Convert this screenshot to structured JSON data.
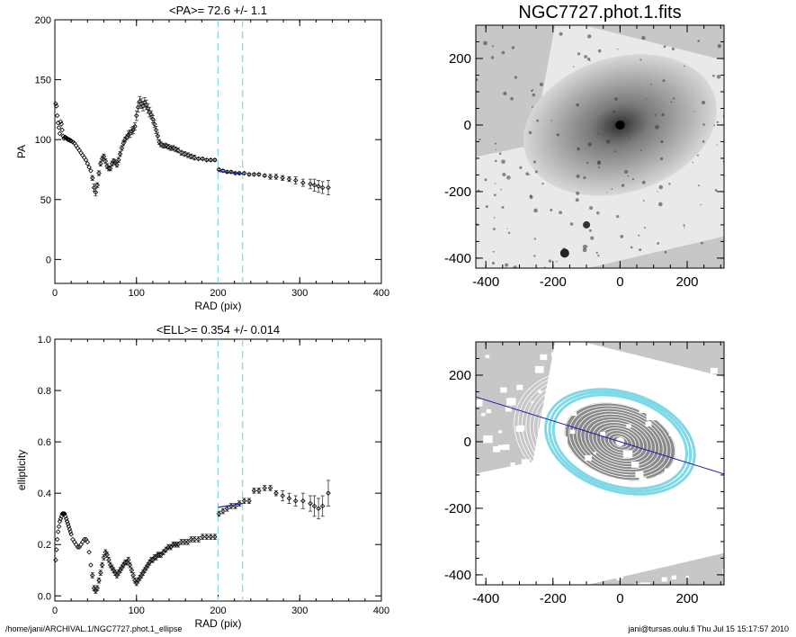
{
  "footer": {
    "path": "/home/jani/ARCHIVAL.1/NGC7727.phot.1_ellipse",
    "user_time": "jani@tursas.oulu.fi  Thu Jul 15 15:17:57 2010"
  },
  "chart_data": [
    {
      "id": "pa",
      "type": "scatter",
      "title": "<PA>=  72.6 +/-   1.1",
      "xlabel": "RAD (pix)",
      "ylabel": "PA",
      "xlim": [
        0,
        400
      ],
      "ylim": [
        -20,
        200
      ],
      "xticks": [
        0,
        100,
        200,
        300,
        400
      ],
      "yticks": [
        0,
        50,
        100,
        150,
        200
      ],
      "marker": "diamond",
      "color": "#000000",
      "vlines": [
        200,
        230
      ],
      "vline_color": "#7fd8e6",
      "fit": {
        "x": [
          200,
          230
        ],
        "y": [
          73.5,
          71.5
        ],
        "color": "#1a1ab0"
      },
      "x": [
        1,
        2,
        3,
        4,
        5,
        6,
        7,
        8,
        9,
        10,
        11,
        12,
        13,
        14,
        15,
        16,
        17,
        18,
        19,
        20,
        22,
        24,
        26,
        28,
        30,
        32,
        34,
        36,
        38,
        40,
        42,
        44,
        46,
        48,
        50,
        52,
        54,
        56,
        58,
        60,
        62,
        64,
        66,
        68,
        70,
        72,
        74,
        76,
        78,
        80,
        82,
        84,
        86,
        88,
        90,
        92,
        94,
        96,
        98,
        100,
        102,
        104,
        106,
        108,
        110,
        112,
        114,
        116,
        118,
        120,
        122,
        124,
        126,
        128,
        130,
        133,
        136,
        139,
        142,
        145,
        148,
        151,
        155,
        159,
        163,
        167,
        171,
        176,
        181,
        186,
        191,
        196,
        201,
        206,
        211,
        216,
        221,
        226,
        232,
        238,
        244,
        250,
        257,
        264,
        271,
        279,
        287,
        295,
        304,
        313,
        318,
        323,
        328,
        335
      ],
      "y": [
        130,
        128,
        120,
        114,
        110,
        105,
        115,
        113,
        108,
        103,
        101,
        102,
        102,
        101,
        101,
        100,
        100,
        100,
        99,
        99,
        98,
        97,
        95,
        93,
        91,
        89,
        87,
        85,
        83,
        80,
        77,
        74,
        68,
        60,
        56,
        62,
        72,
        80,
        84,
        86,
        82,
        78,
        76,
        76,
        80,
        82,
        81,
        79,
        83,
        88,
        93,
        97,
        100,
        102,
        104,
        105,
        107,
        108,
        111,
        120,
        127,
        132,
        130,
        128,
        131,
        129,
        126,
        123,
        121,
        117,
        113,
        108,
        103,
        98,
        96,
        95,
        95,
        94,
        93,
        93,
        92,
        91,
        89,
        88,
        87,
        86,
        85,
        84,
        84,
        83,
        83,
        83,
        75,
        74,
        73,
        73,
        72,
        72,
        72,
        71,
        71,
        71,
        70,
        69,
        69,
        68,
        67,
        66,
        64,
        63,
        62,
        61,
        60,
        60
      ],
      "err": [
        0,
        0,
        0,
        0,
        0,
        0,
        0,
        0,
        0,
        0,
        0,
        0,
        0,
        0,
        0,
        0,
        0,
        0,
        0,
        0,
        0,
        0,
        0,
        0,
        0,
        0,
        0,
        0,
        0,
        0,
        0,
        0,
        2,
        3,
        3,
        2,
        2,
        2,
        2,
        2,
        2,
        2,
        2,
        2,
        2,
        2,
        2,
        2,
        2,
        2,
        2,
        2,
        2,
        2,
        3,
        3,
        3,
        3,
        3,
        4,
        4,
        4,
        4,
        4,
        4,
        4,
        4,
        4,
        3,
        3,
        3,
        3,
        3,
        2,
        2,
        2,
        2,
        2,
        2,
        2,
        2,
        2,
        2,
        2,
        2,
        2,
        2,
        1,
        1,
        1,
        1,
        1,
        1,
        1,
        1,
        1,
        1,
        1,
        1,
        1,
        1,
        1,
        1,
        2,
        2,
        2,
        2,
        3,
        3,
        4,
        5,
        5,
        5,
        6
      ]
    },
    {
      "id": "ell",
      "type": "scatter",
      "title": "<ELL>= 0.354 +/-  0.014",
      "xlabel": "RAD (pix)",
      "ylabel": "ellipticity",
      "xlim": [
        0,
        400
      ],
      "ylim": [
        -0.02,
        1.0
      ],
      "xticks": [
        0,
        100,
        200,
        300,
        400
      ],
      "yticks": [
        0.0,
        0.2,
        0.4,
        0.6,
        0.8,
        1.0
      ],
      "marker": "diamond",
      "color": "#000000",
      "vlines": [
        200,
        230
      ],
      "vline_color": "#7fd8e6",
      "fit": {
        "x": [
          200,
          230
        ],
        "y": [
          0.345,
          0.36
        ],
        "color": "#1a1ab0"
      },
      "x": [
        1,
        2,
        3,
        4,
        5,
        6,
        7,
        8,
        9,
        10,
        11,
        12,
        13,
        14,
        15,
        16,
        17,
        18,
        19,
        20,
        22,
        24,
        26,
        28,
        30,
        32,
        34,
        36,
        38,
        40,
        42,
        44,
        46,
        48,
        50,
        52,
        54,
        56,
        58,
        60,
        62,
        64,
        66,
        68,
        70,
        72,
        74,
        76,
        78,
        80,
        82,
        84,
        86,
        88,
        90,
        92,
        94,
        96,
        98,
        100,
        102,
        104,
        106,
        108,
        110,
        112,
        114,
        116,
        118,
        120,
        122,
        124,
        126,
        128,
        130,
        133,
        136,
        139,
        142,
        145,
        148,
        151,
        155,
        159,
        163,
        167,
        171,
        176,
        181,
        186,
        191,
        196,
        201,
        206,
        211,
        216,
        221,
        226,
        232,
        238,
        244,
        250,
        257,
        264,
        271,
        279,
        287,
        295,
        304,
        313,
        318,
        323,
        328,
        335
      ],
      "y": [
        0.14,
        0.18,
        0.22,
        0.25,
        0.27,
        0.29,
        0.3,
        0.31,
        0.32,
        0.32,
        0.32,
        0.32,
        0.31,
        0.3,
        0.29,
        0.28,
        0.27,
        0.26,
        0.25,
        0.24,
        0.22,
        0.21,
        0.2,
        0.19,
        0.19,
        0.2,
        0.21,
        0.22,
        0.22,
        0.21,
        0.17,
        0.12,
        0.08,
        0.03,
        0.02,
        0.03,
        0.06,
        0.09,
        0.12,
        0.15,
        0.17,
        0.16,
        0.14,
        0.12,
        0.11,
        0.1,
        0.09,
        0.08,
        0.09,
        0.1,
        0.11,
        0.12,
        0.13,
        0.13,
        0.14,
        0.12,
        0.1,
        0.08,
        0.06,
        0.05,
        0.06,
        0.07,
        0.08,
        0.09,
        0.1,
        0.11,
        0.12,
        0.13,
        0.14,
        0.14,
        0.15,
        0.15,
        0.16,
        0.16,
        0.16,
        0.17,
        0.18,
        0.19,
        0.19,
        0.2,
        0.2,
        0.2,
        0.21,
        0.21,
        0.21,
        0.22,
        0.22,
        0.22,
        0.23,
        0.23,
        0.23,
        0.23,
        0.32,
        0.33,
        0.34,
        0.35,
        0.35,
        0.36,
        0.37,
        0.37,
        0.41,
        0.41,
        0.42,
        0.42,
        0.4,
        0.39,
        0.38,
        0.37,
        0.37,
        0.36,
        0.35,
        0.34,
        0.35,
        0.4
      ],
      "err": [
        0,
        0,
        0,
        0,
        0,
        0,
        0,
        0,
        0,
        0,
        0,
        0,
        0,
        0,
        0,
        0,
        0,
        0,
        0,
        0,
        0,
        0,
        0,
        0,
        0,
        0,
        0,
        0,
        0,
        0,
        0,
        0,
        0.01,
        0.01,
        0.01,
        0.01,
        0.01,
        0.01,
        0.01,
        0.01,
        0.01,
        0.01,
        0.01,
        0.01,
        0.01,
        0.01,
        0.01,
        0.01,
        0.01,
        0.01,
        0.01,
        0.01,
        0.01,
        0.01,
        0.01,
        0.01,
        0.01,
        0.01,
        0.01,
        0.01,
        0.01,
        0.01,
        0.01,
        0.01,
        0.01,
        0.01,
        0.01,
        0.01,
        0.01,
        0.01,
        0.01,
        0.01,
        0.01,
        0.01,
        0.01,
        0.01,
        0.01,
        0.01,
        0.01,
        0.01,
        0.01,
        0.01,
        0.01,
        0.01,
        0.01,
        0.01,
        0.01,
        0.01,
        0.01,
        0.01,
        0.01,
        0.01,
        0.01,
        0.01,
        0.01,
        0.01,
        0.01,
        0.01,
        0.01,
        0.01,
        0.01,
        0.01,
        0.01,
        0.01,
        0.01,
        0.02,
        0.02,
        0.02,
        0.03,
        0.03,
        0.04,
        0.04,
        0.04,
        0.05
      ]
    },
    {
      "id": "img",
      "type": "heatmap",
      "title": "NGC7727.phot.1.fits",
      "xlim": [
        -430,
        310
      ],
      "ylim": [
        -430,
        300
      ],
      "xticks": [
        -400,
        -200,
        0,
        200
      ],
      "yticks": [
        -400,
        -200,
        0,
        200
      ],
      "background": "#c7c7c7"
    },
    {
      "id": "iso",
      "type": "heatmap",
      "xlim": [
        -430,
        310
      ],
      "ylim": [
        -430,
        300
      ],
      "xticks": [
        -400,
        -200,
        0,
        200
      ],
      "yticks": [
        -400,
        -200,
        0,
        200
      ],
      "background": "#c7c7c7",
      "pa_line_deg": 72.6,
      "ell_mean": 0.354,
      "band_sma": [
        200,
        230
      ],
      "band_color": "#7fd8e6",
      "pa_line_color": "#1a1ab0"
    }
  ]
}
